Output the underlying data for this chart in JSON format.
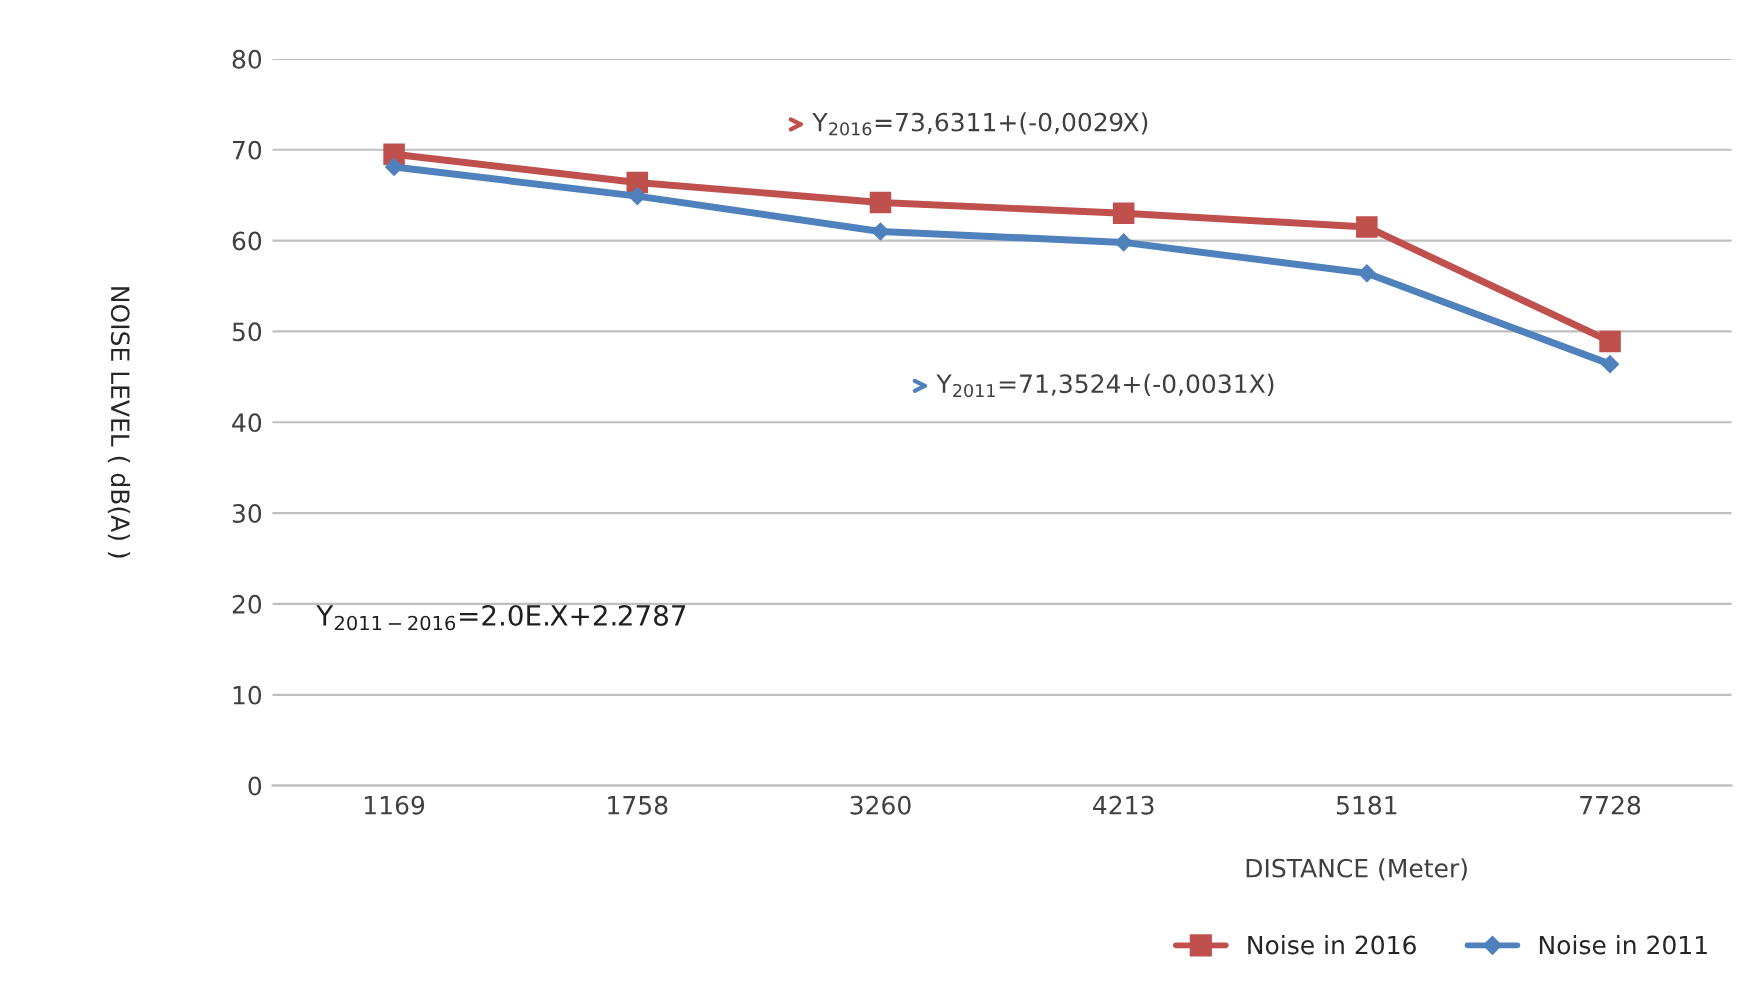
{
  "chart_data": {
    "type": "line",
    "xlabel": "DISTANCE (Meter)",
    "ylabel": "NOISE LEVEL ( dB(A) )",
    "categories": [
      "1169",
      "1758",
      "3260",
      "4213",
      "5181",
      "7728"
    ],
    "series": [
      {
        "name": "Noise in 2016",
        "color": "#c0504d",
        "marker": "square",
        "values": [
          69.5,
          66.4,
          64.2,
          63.0,
          61.5,
          48.9
        ]
      },
      {
        "name": "Noise in 2011",
        "color": "#4f81bd",
        "marker": "diamond",
        "values": [
          68.1,
          64.9,
          61.0,
          59.8,
          56.4,
          46.4
        ]
      }
    ],
    "ylim": [
      0,
      80
    ],
    "yticks": [
      0,
      10,
      20,
      30,
      40,
      50,
      60,
      70,
      80
    ],
    "grid": "y",
    "legend": "bottom right",
    "annotations": [
      "Y$_{2016}$=73,6311+(-0,0029X)",
      "Y$_{2011}$=71,3524+(-0,0031X)",
      "Y$_{2011−2016}$=2.0E.X+2.2787"
    ]
  }
}
